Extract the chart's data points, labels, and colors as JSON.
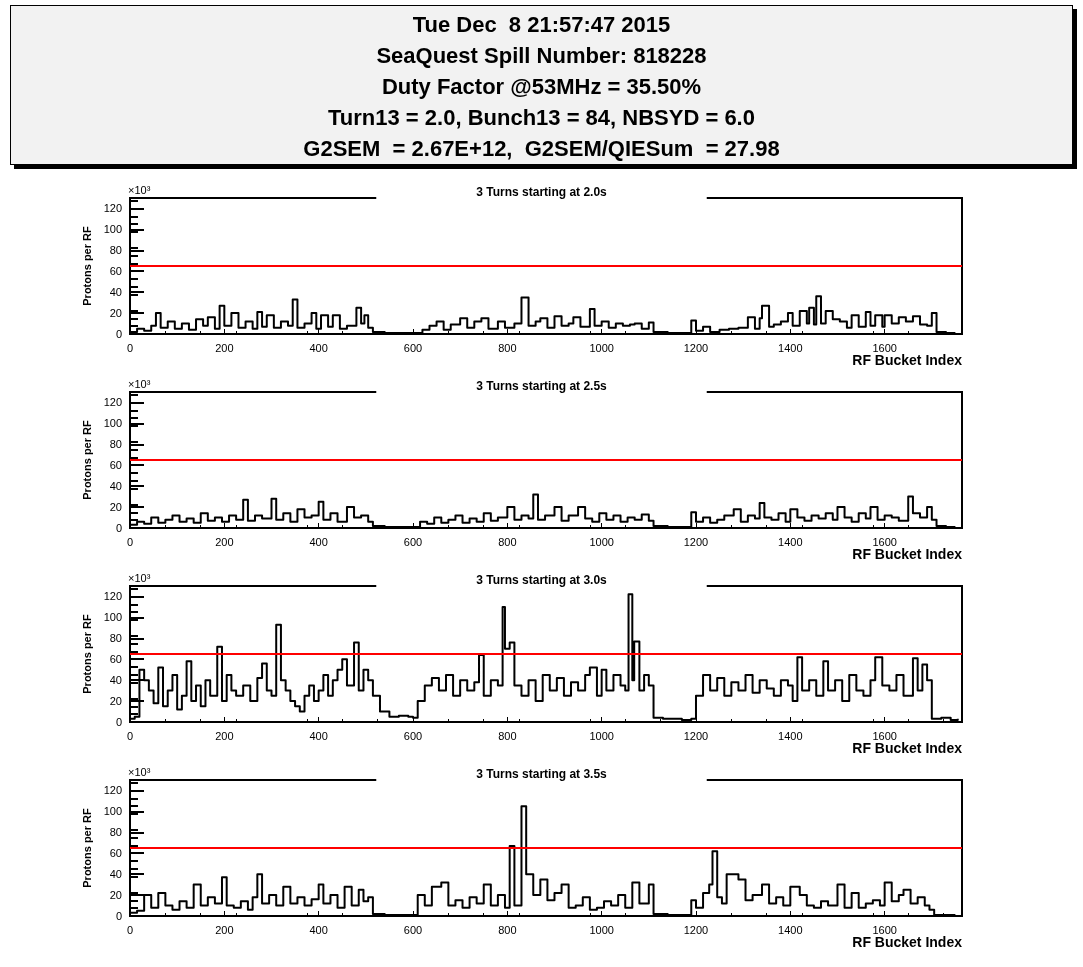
{
  "chart_data": [
    {
      "type": "other",
      "title": "Tue Dec  8 21:57:47 2015",
      "annotations": [
        "SeaQuest Spill Number: 818228",
        "Duty Factor @53MHz = 35.50%",
        "Turn13 = 2.0, Bunch13 = 84, NBSYD = 6.0",
        "G2SEM  = 2.67E+12,  G2SEM/QIESum  = 27.98"
      ]
    },
    {
      "type": "step",
      "title": "3 Turns starting at 2.0s",
      "xlabel": "RF Bucket Index",
      "ylabel": "Protons per RF",
      "annotations": [
        "×10³"
      ],
      "color": "#000000",
      "x": [
        0,
        15,
        30,
        45,
        55,
        65,
        80,
        95,
        110,
        125,
        140,
        155,
        165,
        180,
        190,
        200,
        215,
        230,
        245,
        260,
        270,
        280,
        290,
        305,
        320,
        335,
        345,
        355,
        370,
        385,
        395,
        405,
        420,
        430,
        445,
        460,
        480,
        490,
        497,
        505,
        515,
        540,
        570,
        600,
        620,
        635,
        650,
        665,
        680,
        700,
        715,
        730,
        745,
        760,
        780,
        795,
        815,
        830,
        845,
        860,
        870,
        885,
        900,
        915,
        930,
        940,
        955,
        975,
        985,
        1000,
        1015,
        1030,
        1045,
        1060,
        1070,
        1085,
        1100,
        1110,
        1140,
        1170,
        1190,
        1200,
        1215,
        1230,
        1250,
        1270,
        1290,
        1310,
        1325,
        1335,
        1340,
        1355,
        1365,
        1380,
        1395,
        1405,
        1420,
        1435,
        1440,
        1450,
        1455,
        1465,
        1475,
        1490,
        1505,
        1520,
        1530,
        1545,
        1560,
        1570,
        1580,
        1595,
        1600,
        1615,
        1630,
        1645,
        1660,
        1675,
        1690,
        1700,
        1710,
        1730,
        1750
      ],
      "values": [
        2,
        5,
        3,
        8,
        20,
        6,
        12,
        5,
        10,
        4,
        14,
        8,
        16,
        5,
        27,
        8,
        20,
        6,
        12,
        5,
        21,
        7,
        18,
        6,
        12,
        8,
        33,
        6,
        10,
        20,
        5,
        18,
        7,
        18,
        5,
        8,
        25,
        10,
        18,
        6,
        2,
        1,
        1,
        1,
        4,
        8,
        12,
        4,
        9,
        15,
        6,
        12,
        15,
        5,
        12,
        6,
        10,
        35,
        8,
        12,
        15,
        6,
        17,
        8,
        10,
        16,
        7,
        24,
        8,
        12,
        6,
        10,
        8,
        9,
        10,
        5,
        11,
        2,
        1,
        1,
        13,
        3,
        7,
        2,
        4,
        5,
        6,
        16,
        5,
        15,
        27,
        7,
        9,
        12,
        20,
        8,
        22,
        10,
        25,
        9,
        36,
        10,
        22,
        14,
        12,
        6,
        18,
        7,
        21,
        8,
        18,
        7,
        18,
        10,
        16,
        12,
        17,
        9,
        8,
        20,
        2,
        1,
        1
      ],
      "xlim": [
        0,
        1764
      ],
      "xticks": [
        0,
        200,
        400,
        600,
        800,
        1000,
        1200,
        1400,
        1600
      ],
      "ylim": [
        0,
        130
      ],
      "yticks": [
        0,
        20,
        40,
        60,
        80,
        100,
        120
      ],
      "ref_lines": [
        {
          "axis": "y",
          "value": 65,
          "color": "#ff0000"
        }
      ]
    },
    {
      "type": "step",
      "title": "3 Turns starting at 2.5s",
      "xlabel": "RF Bucket Index",
      "ylabel": "Protons per RF",
      "annotations": [
        "×10³"
      ],
      "color": "#000000",
      "x": [
        0,
        15,
        30,
        45,
        60,
        75,
        90,
        105,
        120,
        135,
        150,
        165,
        180,
        195,
        210,
        225,
        240,
        250,
        265,
        280,
        300,
        310,
        325,
        340,
        355,
        370,
        385,
        400,
        410,
        425,
        440,
        460,
        475,
        490,
        505,
        515,
        540,
        570,
        600,
        615,
        630,
        645,
        660,
        675,
        690,
        705,
        720,
        735,
        750,
        765,
        780,
        800,
        815,
        830,
        845,
        855,
        865,
        880,
        900,
        915,
        930,
        950,
        965,
        980,
        995,
        1010,
        1025,
        1040,
        1055,
        1070,
        1085,
        1100,
        1110,
        1140,
        1170,
        1190,
        1200,
        1215,
        1230,
        1245,
        1260,
        1280,
        1295,
        1310,
        1325,
        1335,
        1345,
        1360,
        1375,
        1390,
        1400,
        1415,
        1430,
        1445,
        1460,
        1475,
        1490,
        1500,
        1515,
        1530,
        1545,
        1560,
        1570,
        1585,
        1600,
        1615,
        1630,
        1650,
        1660,
        1675,
        1690,
        1700,
        1710,
        1730,
        1750
      ],
      "values": [
        3,
        6,
        4,
        10,
        5,
        8,
        12,
        6,
        9,
        5,
        14,
        7,
        10,
        6,
        12,
        8,
        27,
        7,
        12,
        9,
        28,
        8,
        14,
        6,
        18,
        10,
        12,
        25,
        8,
        14,
        6,
        20,
        10,
        12,
        6,
        2,
        1,
        1,
        1,
        6,
        4,
        10,
        5,
        8,
        12,
        5,
        9,
        6,
        14,
        7,
        10,
        20,
        8,
        12,
        9,
        32,
        8,
        12,
        20,
        7,
        12,
        20,
        9,
        6,
        14,
        8,
        12,
        6,
        10,
        8,
        13,
        7,
        2,
        1,
        1,
        15,
        6,
        10,
        5,
        8,
        12,
        18,
        6,
        12,
        9,
        24,
        10,
        8,
        14,
        6,
        18,
        10,
        7,
        12,
        9,
        14,
        8,
        20,
        10,
        6,
        14,
        9,
        20,
        8,
        12,
        10,
        7,
        30,
        14,
        10,
        20,
        8,
        2,
        1,
        1
      ],
      "xlim": [
        0,
        1764
      ],
      "xticks": [
        0,
        200,
        400,
        600,
        800,
        1000,
        1200,
        1400,
        1600
      ],
      "ylim": [
        0,
        130
      ],
      "yticks": [
        0,
        20,
        40,
        60,
        80,
        100,
        120
      ],
      "ref_lines": [
        {
          "axis": "y",
          "value": 65,
          "color": "#ff0000"
        }
      ]
    },
    {
      "type": "step",
      "title": "3 Turns starting at 3.0s",
      "xlabel": "RF Bucket Index",
      "ylabel": "Protons per RF",
      "annotations": [
        "×10³"
      ],
      "color": "#000000",
      "x": [
        0,
        10,
        20,
        30,
        40,
        50,
        60,
        70,
        80,
        90,
        100,
        110,
        120,
        130,
        140,
        150,
        160,
        170,
        185,
        195,
        205,
        215,
        225,
        240,
        255,
        270,
        280,
        290,
        300,
        310,
        320,
        330,
        340,
        350,
        360,
        370,
        380,
        390,
        400,
        410,
        420,
        430,
        440,
        450,
        460,
        475,
        485,
        495,
        505,
        515,
        530,
        550,
        570,
        590,
        600,
        610,
        625,
        640,
        655,
        670,
        685,
        700,
        715,
        730,
        740,
        750,
        765,
        780,
        790,
        795,
        805,
        815,
        830,
        845,
        860,
        875,
        890,
        905,
        920,
        935,
        950,
        965,
        975,
        990,
        1000,
        1010,
        1025,
        1040,
        1050,
        1057,
        1065,
        1069,
        1080,
        1090,
        1100,
        1110,
        1130,
        1150,
        1170,
        1190,
        1200,
        1215,
        1230,
        1245,
        1260,
        1275,
        1290,
        1305,
        1320,
        1335,
        1350,
        1365,
        1380,
        1395,
        1405,
        1415,
        1425,
        1440,
        1455,
        1470,
        1480,
        1495,
        1510,
        1525,
        1540,
        1555,
        1570,
        1580,
        1595,
        1610,
        1625,
        1640,
        1660,
        1670,
        1680,
        1690,
        1700,
        1720,
        1740,
        1755
      ],
      "values": [
        3,
        5,
        50,
        40,
        30,
        18,
        52,
        15,
        30,
        45,
        12,
        25,
        58,
        20,
        35,
        15,
        40,
        25,
        72,
        20,
        45,
        30,
        25,
        35,
        20,
        42,
        56,
        30,
        25,
        93,
        40,
        30,
        20,
        15,
        10,
        25,
        35,
        20,
        30,
        45,
        25,
        40,
        50,
        60,
        35,
        76,
        30,
        50,
        40,
        25,
        10,
        5,
        6,
        5,
        4,
        20,
        35,
        42,
        30,
        45,
        25,
        40,
        30,
        38,
        64,
        25,
        40,
        35,
        110,
        70,
        76,
        35,
        25,
        40,
        20,
        45,
        30,
        42,
        25,
        38,
        30,
        45,
        52,
        25,
        50,
        30,
        45,
        35,
        30,
        122,
        40,
        77,
        30,
        45,
        35,
        4,
        3,
        3,
        2,
        3,
        25,
        45,
        30,
        42,
        25,
        38,
        30,
        45,
        28,
        40,
        32,
        25,
        40,
        35,
        20,
        62,
        30,
        40,
        25,
        58,
        30,
        40,
        20,
        45,
        30,
        25,
        40,
        62,
        35,
        30,
        45,
        25,
        61,
        30,
        55,
        40,
        3,
        4,
        2,
        3
      ],
      "xlim": [
        0,
        1764
      ],
      "xticks": [
        0,
        200,
        400,
        600,
        800,
        1000,
        1200,
        1400,
        1600
      ],
      "ylim": [
        0,
        130
      ],
      "yticks": [
        0,
        20,
        40,
        60,
        80,
        100,
        120
      ],
      "ref_lines": [
        {
          "axis": "y",
          "value": 65,
          "color": "#ff0000"
        }
      ]
    },
    {
      "type": "step",
      "title": "3 Turns starting at 3.5s",
      "xlabel": "RF Bucket Index",
      "ylabel": "Protons per RF",
      "annotations": [
        "×10³"
      ],
      "color": "#000000",
      "x": [
        0,
        15,
        30,
        45,
        60,
        75,
        90,
        105,
        120,
        135,
        150,
        165,
        180,
        195,
        205,
        220,
        235,
        250,
        260,
        270,
        280,
        295,
        310,
        325,
        340,
        355,
        370,
        385,
        400,
        410,
        425,
        440,
        455,
        470,
        485,
        495,
        505,
        515,
        540,
        570,
        600,
        610,
        625,
        640,
        660,
        675,
        690,
        705,
        720,
        735,
        750,
        765,
        780,
        795,
        805,
        815,
        830,
        840,
        855,
        870,
        885,
        900,
        915,
        930,
        945,
        960,
        975,
        990,
        1005,
        1020,
        1035,
        1050,
        1065,
        1080,
        1100,
        1110,
        1140,
        1170,
        1190,
        1200,
        1215,
        1228,
        1235,
        1245,
        1255,
        1265,
        1275,
        1290,
        1305,
        1320,
        1340,
        1355,
        1370,
        1385,
        1400,
        1420,
        1435,
        1450,
        1465,
        1480,
        1500,
        1515,
        1530,
        1545,
        1560,
        1575,
        1590,
        1600,
        1615,
        1630,
        1640,
        1655,
        1670,
        1685,
        1695,
        1705,
        1730,
        1750
      ],
      "values": [
        3,
        5,
        20,
        8,
        22,
        10,
        6,
        14,
        8,
        30,
        10,
        18,
        12,
        37,
        10,
        8,
        14,
        6,
        18,
        40,
        12,
        20,
        10,
        28,
        12,
        18,
        10,
        16,
        30,
        12,
        20,
        8,
        28,
        10,
        25,
        14,
        18,
        2,
        1,
        1,
        1,
        20,
        10,
        28,
        32,
        10,
        15,
        8,
        18,
        12,
        30,
        10,
        20,
        8,
        67,
        10,
        105,
        40,
        20,
        35,
        15,
        22,
        30,
        8,
        10,
        18,
        6,
        8,
        14,
        10,
        20,
        8,
        32,
        12,
        30,
        2,
        1,
        1,
        15,
        8,
        22,
        30,
        62,
        18,
        12,
        40,
        40,
        35,
        15,
        20,
        30,
        12,
        18,
        10,
        28,
        20,
        10,
        8,
        14,
        10,
        30,
        8,
        22,
        8,
        12,
        15,
        10,
        32,
        14,
        20,
        25,
        12,
        18,
        10,
        6,
        1,
        1,
        1
      ],
      "xlim": [
        0,
        1764
      ],
      "xticks": [
        0,
        200,
        400,
        600,
        800,
        1000,
        1200,
        1400,
        1600
      ],
      "ylim": [
        0,
        130
      ],
      "yticks": [
        0,
        20,
        40,
        60,
        80,
        100,
        120
      ],
      "ref_lines": [
        {
          "axis": "y",
          "value": 65,
          "color": "#ff0000"
        }
      ]
    }
  ]
}
